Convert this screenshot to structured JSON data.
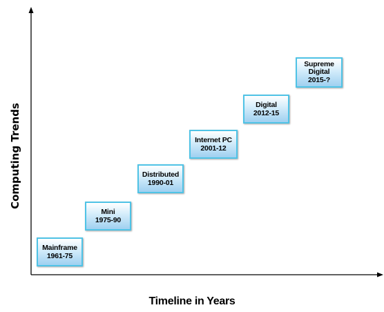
{
  "y_axis_label": "Computing Trends",
  "x_axis_label": "Timeline in Years",
  "eras": [
    {
      "name": "Mainframe",
      "years": "1961-75"
    },
    {
      "name": "Mini",
      "years": "1975-90"
    },
    {
      "name": "Distributed",
      "years": "1990-01"
    },
    {
      "name": "Internet PC",
      "years": "2001-12"
    },
    {
      "name": "Digital",
      "years": "2012-15"
    },
    {
      "name": "Supreme",
      "name2": "Digital",
      "years": "2015-?"
    }
  ],
  "colors": {
    "box_border": "#4fc3e6",
    "box_fill_top": "#ffffff",
    "box_fill_bottom": "#9fd0f0",
    "axis": "#000000"
  }
}
